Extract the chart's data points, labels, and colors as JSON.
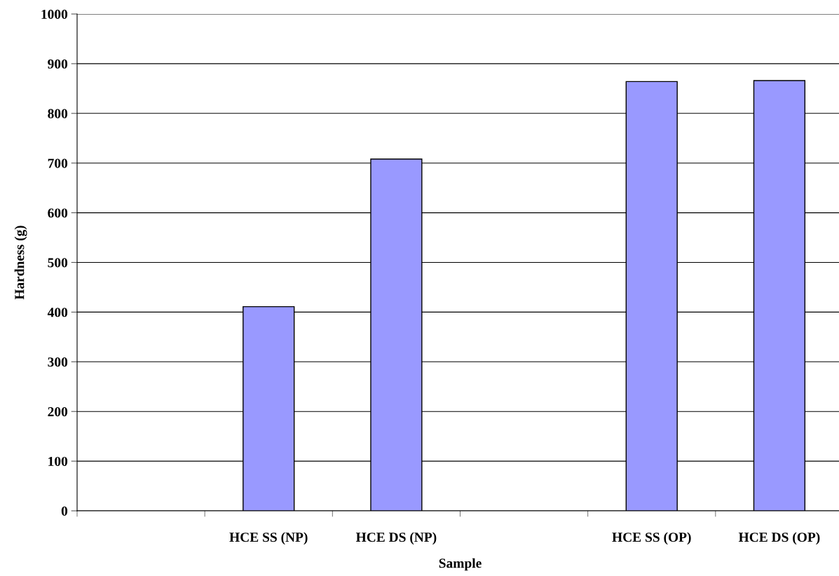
{
  "chart_data": {
    "type": "bar",
    "xlabel": "Sample",
    "ylabel": "Hardness (g)",
    "categories": [
      null,
      "HCE SS (NP)",
      "HCE DS (NP)",
      null,
      "HCE SS (OP)",
      "HCE DS (OP)"
    ],
    "values": [
      null,
      411,
      708,
      null,
      864,
      866
    ],
    "color": "#9999ff",
    "ylim": [
      0,
      1000
    ],
    "yticks": [
      0,
      100,
      200,
      300,
      400,
      500,
      600,
      700,
      800,
      900,
      1000
    ],
    "grid": "y",
    "legend": false
  }
}
